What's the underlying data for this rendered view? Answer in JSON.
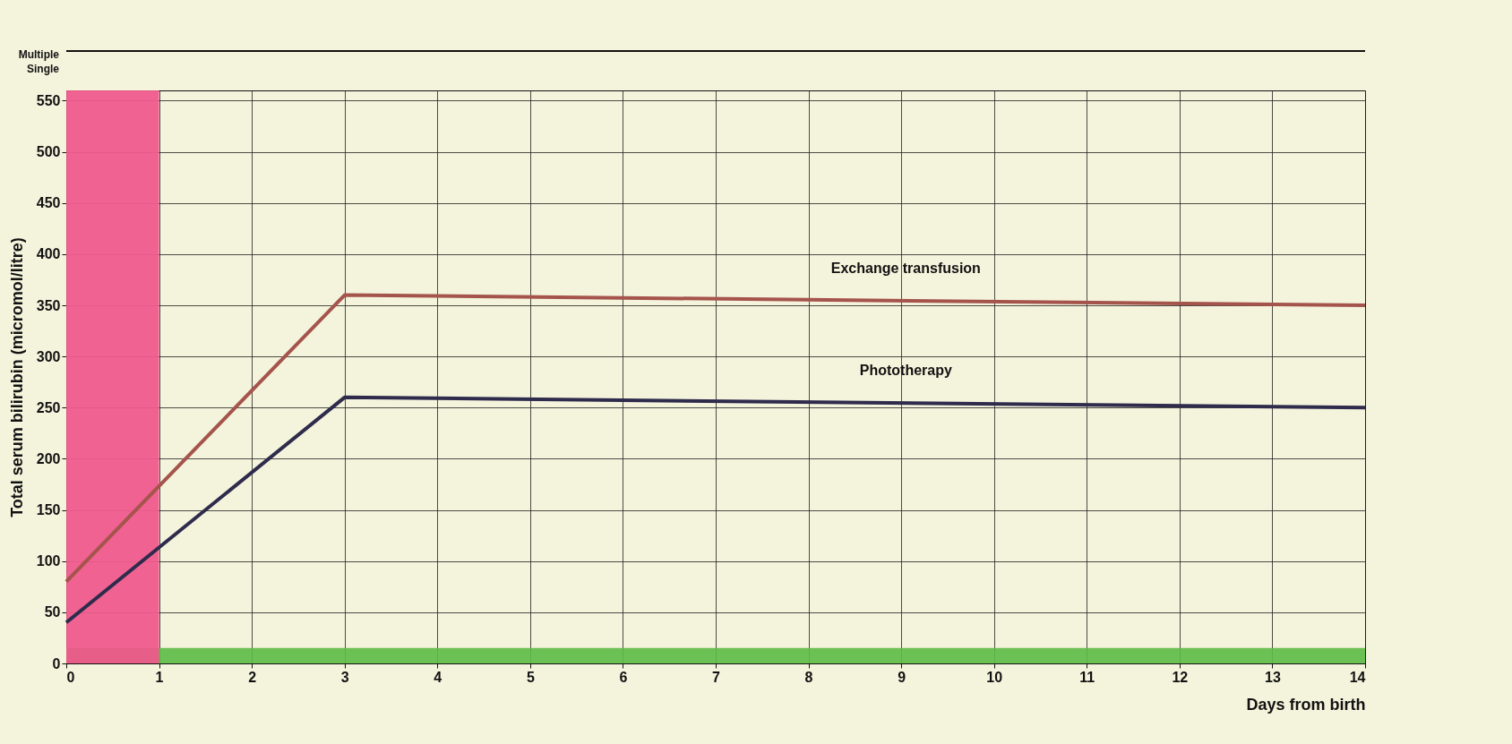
{
  "chart_data": {
    "type": "line",
    "xlabel": "Days from birth",
    "ylabel": "Total serum bilirubin  (micromol/litre)",
    "x": [
      0,
      3,
      14
    ],
    "series": [
      {
        "name": "Exchange transfusion",
        "color": "#a5544c",
        "values": [
          80,
          360,
          350
        ]
      },
      {
        "name": "Phototherapy",
        "color": "#2e2b4c",
        "values": [
          40,
          260,
          250
        ]
      }
    ],
    "xlim": [
      0,
      14
    ],
    "xticks": [
      0,
      1,
      2,
      3,
      4,
      5,
      6,
      7,
      8,
      9,
      10,
      11,
      12,
      13,
      14
    ],
    "ylim": [
      0,
      560
    ],
    "yticks": [
      0,
      50,
      100,
      150,
      200,
      250,
      300,
      350,
      400,
      450,
      500,
      550
    ],
    "bands": [
      {
        "axis": "y",
        "from": 0,
        "to": 15,
        "color": "#5dbb46"
      },
      {
        "axis": "x",
        "from": 0,
        "to": 1,
        "color": "#ee5a8c"
      }
    ],
    "annotations": [
      "Multiple",
      "Single"
    ],
    "grid": true,
    "marker": "none",
    "line_style": "solid"
  }
}
